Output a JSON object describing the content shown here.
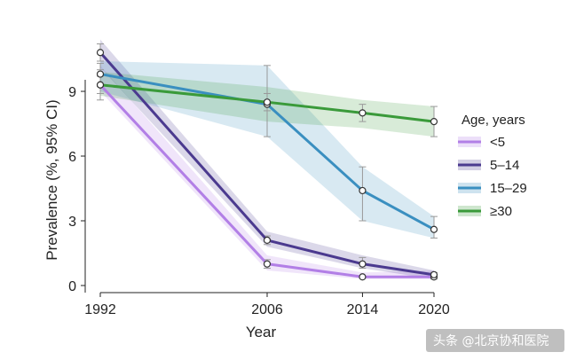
{
  "chart_data": {
    "type": "line",
    "xlabel": "Year",
    "ylabel": "Prevalence (%, 95% CI)",
    "x": [
      1992,
      2006,
      2014,
      2020
    ],
    "x_ticks": [
      "1992",
      "2006",
      "2014",
      "2020"
    ],
    "y_ticks": [
      "0",
      "3",
      "6",
      "9"
    ],
    "xlim": [
      1992,
      2020
    ],
    "ylim": [
      0,
      11.4
    ],
    "legend": {
      "title": "Age, years",
      "position": "right"
    },
    "series": [
      {
        "name": "<5",
        "color": "#b27fe6",
        "values": [
          9.3,
          1.0,
          0.4,
          0.4
        ],
        "lower": [
          8.6,
          0.8,
          0.35,
          0.3
        ],
        "upper": [
          10.0,
          1.2,
          0.5,
          0.6
        ],
        "band_lower": [
          9.0,
          0.7,
          0.3,
          0.3
        ],
        "band_upper": [
          10.2,
          1.4,
          0.6,
          0.7
        ]
      },
      {
        "name": "5–14",
        "color": "#4b3a8f",
        "values": [
          10.8,
          2.1,
          1.0,
          0.5
        ],
        "lower": [
          10.4,
          1.9,
          0.8,
          0.4
        ],
        "upper": [
          11.2,
          2.3,
          1.3,
          0.6
        ],
        "band_lower": [
          10.1,
          1.8,
          0.8,
          0.3
        ],
        "band_upper": [
          11.4,
          2.5,
          1.4,
          0.7
        ]
      },
      {
        "name": "15–29",
        "color": "#3a8fc0",
        "values": [
          9.8,
          8.4,
          4.4,
          2.6
        ],
        "lower": [
          9.3,
          6.9,
          3.0,
          2.2
        ],
        "upper": [
          10.3,
          10.2,
          5.5,
          3.2
        ],
        "band_lower": [
          9.0,
          6.9,
          3.0,
          2.2
        ],
        "band_upper": [
          10.4,
          10.2,
          5.5,
          3.2
        ]
      },
      {
        "name": "≥30",
        "color": "#3a9a3a",
        "values": [
          9.3,
          8.5,
          8.0,
          7.6
        ],
        "lower": [
          8.9,
          8.1,
          7.6,
          6.9
        ],
        "upper": [
          9.7,
          8.9,
          8.4,
          8.3
        ],
        "band_lower": [
          8.8,
          7.6,
          7.3,
          6.9
        ],
        "band_upper": [
          9.9,
          9.2,
          8.6,
          8.3
        ]
      }
    ]
  },
  "watermark": "头条 @北京协和医院"
}
